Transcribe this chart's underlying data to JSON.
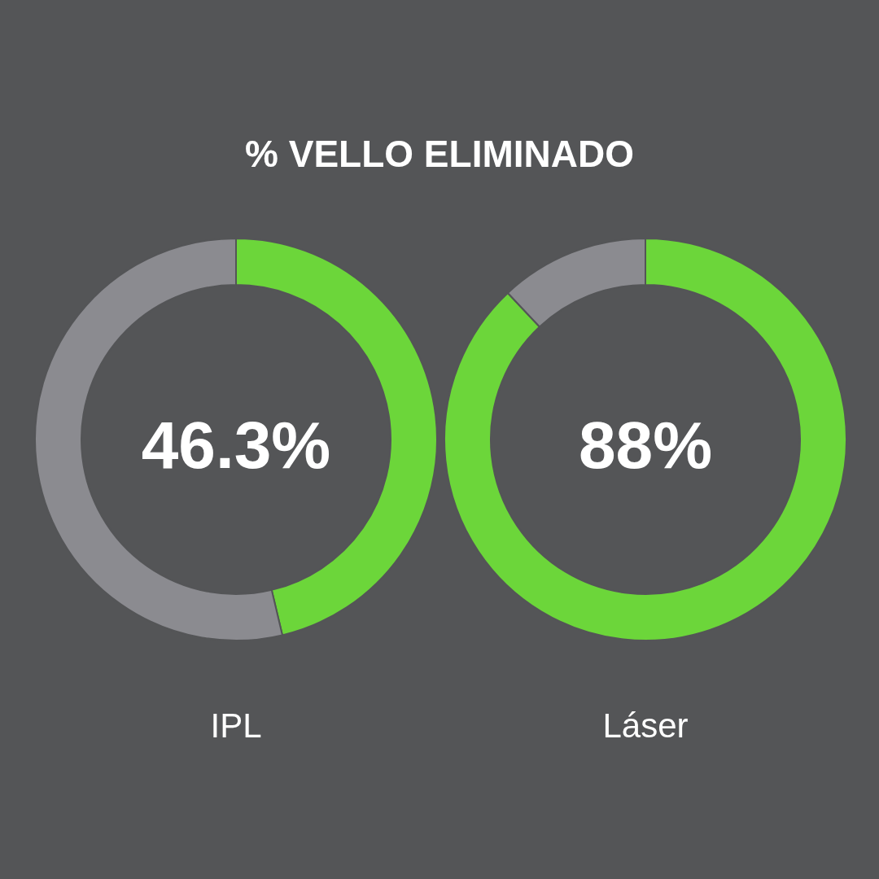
{
  "chart_data": [
    {
      "type": "donut",
      "title": "% VELLO ELIMINADO",
      "xlabel": "IPL",
      "categories": [
        null,
        null
      ],
      "values": [
        46.3,
        53.7
      ],
      "colors": [
        "#6cd63a",
        "#8b8b90"
      ],
      "annotations": [
        "46.3%"
      ]
    },
    {
      "type": "donut",
      "xlabel": "Láser",
      "categories": [
        null,
        null
      ],
      "values": [
        88,
        12
      ],
      "colors": [
        "#6cd63a",
        "#8b8b90"
      ],
      "annotations": [
        "88%"
      ]
    }
  ]
}
